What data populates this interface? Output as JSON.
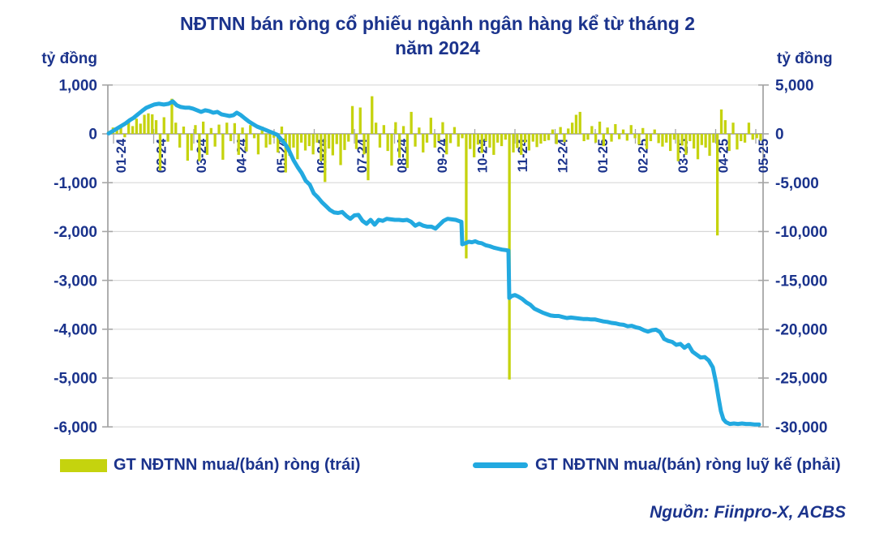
{
  "title": {
    "line1": "NĐTNN bán ròng cổ phiếu ngành ngân hàng kể từ tháng 2",
    "line2": "năm 2024"
  },
  "left_axis_unit": "tỷ đồng",
  "right_axis_unit": "tỷ đồng",
  "legend": [
    {
      "label": "GT NĐTNN mua/(bán) ròng (trái)",
      "type": "bar",
      "color": "#C5D30E"
    },
    {
      "label": "GT NĐTNN mua/(bán) ròng luỹ kế (phải)",
      "type": "line",
      "color": "#22A9E0"
    }
  ],
  "source": "Nguồn: Fiinpro-X, ACBS",
  "colors": {
    "bar": "#C5D30E",
    "line": "#22A9E0",
    "text": "#1B338C",
    "axis": "#A6A6A6",
    "grid": "#D9D9D9"
  },
  "chart_data": {
    "type": "bar",
    "combo": "bar+line dual axis",
    "title": "NĐTNN bán ròng cổ phiếu ngành ngân hàng kể từ tháng 2 năm 2024",
    "x_labels": [
      "01-24",
      "02-24",
      "03-24",
      "04-24",
      "05-24",
      "06-24",
      "07-24",
      "08-24",
      "09-24",
      "10-24",
      "11-24",
      "12-24",
      "01-25",
      "02-25",
      "03-25",
      "04-25",
      "05-25"
    ],
    "left_axis": {
      "unit": "tỷ đồng",
      "min": -6000,
      "max": 1000,
      "tick_step": 1000,
      "tick_values": [
        1000,
        0,
        -1000,
        -2000,
        -3000,
        -4000,
        -5000,
        -6000
      ],
      "tick_labels": [
        "1,000",
        "0",
        "-1,000",
        "-2,000",
        "-3,000",
        "-4,000",
        "-5,000",
        "-6,000"
      ]
    },
    "right_axis": {
      "unit": "tỷ đồng",
      "min": -30000,
      "max": 5000,
      "tick_step": 5000,
      "tick_values": [
        5000,
        0,
        -5000,
        -10000,
        -15000,
        -20000,
        -25000,
        -30000
      ],
      "tick_labels": [
        "5,000",
        "0",
        "-5,000",
        "-10,000",
        "-15,000",
        "-20,000",
        "-25,000",
        "-30,000"
      ]
    },
    "grid": "horizontal only",
    "legend_position": "bottom",
    "series": [
      {
        "name": "GT NĐTNN mua/(bán) ròng (trái)",
        "type": "bar",
        "axis": "left",
        "values": [
          60,
          130,
          90,
          180,
          -70,
          240,
          160,
          310,
          210,
          390,
          420,
          400,
          280,
          -750,
          340,
          -160,
          720,
          230,
          -280,
          150,
          -550,
          -340,
          180,
          -560,
          250,
          -430,
          120,
          -260,
          190,
          -530,
          230,
          -150,
          220,
          -430,
          130,
          -360,
          180,
          -90,
          -420,
          150,
          -280,
          -220,
          -80,
          -380,
          150,
          -790,
          -450,
          -280,
          -520,
          -180,
          -340,
          -250,
          -420,
          -180,
          -560,
          -985,
          -300,
          -440,
          -210,
          -640,
          -330,
          -160,
          570,
          -310,
          540,
          -420,
          -950,
          770,
          230,
          -280,
          180,
          -350,
          -650,
          240,
          -490,
          160,
          -700,
          450,
          -260,
          130,
          -380,
          -180,
          330,
          -280,
          -150,
          240,
          -420,
          -190,
          140,
          -260,
          -90,
          -2550,
          -310,
          -480,
          -220,
          -390,
          -150,
          -280,
          -430,
          -180,
          -250,
          -120,
          -5030,
          -380,
          -290,
          -430,
          -180,
          -340,
          -160,
          -270,
          -200,
          -150,
          -130,
          90,
          -210,
          140,
          -170,
          110,
          230,
          390,
          450,
          -150,
          -120,
          160,
          -180,
          250,
          -250,
          130,
          -160,
          200,
          -110,
          90,
          -140,
          180,
          -90,
          -220,
          120,
          -310,
          -150,
          90,
          -190,
          -260,
          -180,
          -350,
          -120,
          -560,
          -240,
          -430,
          -150,
          -300,
          -520,
          -230,
          -280,
          -450,
          -180,
          -2080,
          500,
          280,
          -350,
          230,
          -320,
          -150,
          -180,
          230,
          -120,
          -90,
          -140
        ]
      },
      {
        "name": "GT NĐTNN mua/(bán) ròng luỹ kế (phải)",
        "type": "line",
        "axis": "right",
        "points": [
          [
            134,
            50
          ],
          [
            140,
            330
          ],
          [
            145,
            580
          ],
          [
            150,
            830
          ],
          [
            155,
            1080
          ],
          [
            160,
            1400
          ],
          [
            165,
            1650
          ],
          [
            170,
            2000
          ],
          [
            175,
            2330
          ],
          [
            180,
            2650
          ],
          [
            185,
            2830
          ],
          [
            190,
            3000
          ],
          [
            196,
            3080
          ],
          [
            202,
            3000
          ],
          [
            208,
            3080
          ],
          [
            213,
            3330
          ],
          [
            218,
            2920
          ],
          [
            223,
            2750
          ],
          [
            228,
            2680
          ],
          [
            233,
            2680
          ],
          [
            238,
            2580
          ],
          [
            243,
            2420
          ],
          [
            248,
            2250
          ],
          [
            253,
            2420
          ],
          [
            258,
            2330
          ],
          [
            263,
            2170
          ],
          [
            268,
            2250
          ],
          [
            273,
            2000
          ],
          [
            278,
            1920
          ],
          [
            283,
            1830
          ],
          [
            288,
            1920
          ],
          [
            292,
            2170
          ],
          [
            297,
            1920
          ],
          [
            302,
            1580
          ],
          [
            307,
            1250
          ],
          [
            312,
            1000
          ],
          [
            317,
            750
          ],
          [
            322,
            580
          ],
          [
            327,
            420
          ],
          [
            332,
            250
          ],
          [
            337,
            80
          ],
          [
            342,
            -100
          ],
          [
            347,
            -600
          ],
          [
            352,
            -1100
          ],
          [
            357,
            -1800
          ],
          [
            362,
            -2700
          ],
          [
            367,
            -3400
          ],
          [
            372,
            -4000
          ],
          [
            377,
            -4800
          ],
          [
            382,
            -5200
          ],
          [
            387,
            -6100
          ],
          [
            392,
            -6500
          ],
          [
            397,
            -7000
          ],
          [
            402,
            -7400
          ],
          [
            407,
            -7800
          ],
          [
            412,
            -8050
          ],
          [
            417,
            -8100
          ],
          [
            422,
            -8000
          ],
          [
            427,
            -8400
          ],
          [
            432,
            -8700
          ],
          [
            437,
            -8350
          ],
          [
            442,
            -8300
          ],
          [
            447,
            -8900
          ],
          [
            452,
            -9200
          ],
          [
            457,
            -8800
          ],
          [
            462,
            -9300
          ],
          [
            467,
            -8800
          ],
          [
            472,
            -8900
          ],
          [
            477,
            -8700
          ],
          [
            482,
            -8750
          ],
          [
            487,
            -8800
          ],
          [
            492,
            -8800
          ],
          [
            497,
            -8850
          ],
          [
            502,
            -8800
          ],
          [
            507,
            -9000
          ],
          [
            512,
            -9400
          ],
          [
            517,
            -9200
          ],
          [
            522,
            -9400
          ],
          [
            527,
            -9500
          ],
          [
            532,
            -9500
          ],
          [
            537,
            -9700
          ],
          [
            542,
            -9300
          ],
          [
            547,
            -8900
          ],
          [
            552,
            -8700
          ],
          [
            557,
            -8750
          ],
          [
            562,
            -8800
          ],
          [
            567,
            -8950
          ],
          [
            569,
            -9000
          ],
          [
            570,
            -11300
          ],
          [
            574,
            -11200
          ],
          [
            578,
            -11050
          ],
          [
            582,
            -11100
          ],
          [
            586,
            -11000
          ],
          [
            590,
            -11150
          ],
          [
            594,
            -11200
          ],
          [
            599,
            -11400
          ],
          [
            604,
            -11500
          ],
          [
            609,
            -11650
          ],
          [
            614,
            -11750
          ],
          [
            619,
            -11850
          ],
          [
            624,
            -11900
          ],
          [
            627,
            -11950
          ],
          [
            628,
            -16800
          ],
          [
            631,
            -16600
          ],
          [
            635,
            -16500
          ],
          [
            639,
            -16650
          ],
          [
            644,
            -16900
          ],
          [
            649,
            -17250
          ],
          [
            654,
            -17500
          ],
          [
            659,
            -17900
          ],
          [
            664,
            -18100
          ],
          [
            669,
            -18300
          ],
          [
            674,
            -18450
          ],
          [
            679,
            -18600
          ],
          [
            684,
            -18650
          ],
          [
            689,
            -18650
          ],
          [
            694,
            -18750
          ],
          [
            699,
            -18850
          ],
          [
            704,
            -18800
          ],
          [
            709,
            -18850
          ],
          [
            714,
            -18900
          ],
          [
            719,
            -18950
          ],
          [
            724,
            -18950
          ],
          [
            729,
            -19000
          ],
          [
            734,
            -19000
          ],
          [
            739,
            -19100
          ],
          [
            744,
            -19200
          ],
          [
            749,
            -19250
          ],
          [
            754,
            -19350
          ],
          [
            759,
            -19400
          ],
          [
            764,
            -19500
          ],
          [
            769,
            -19550
          ],
          [
            774,
            -19700
          ],
          [
            779,
            -19650
          ],
          [
            784,
            -19800
          ],
          [
            789,
            -19900
          ],
          [
            794,
            -20100
          ],
          [
            799,
            -20250
          ],
          [
            804,
            -20100
          ],
          [
            809,
            -20050
          ],
          [
            814,
            -20300
          ],
          [
            819,
            -21000
          ],
          [
            824,
            -21200
          ],
          [
            829,
            -21300
          ],
          [
            834,
            -21600
          ],
          [
            839,
            -21500
          ],
          [
            844,
            -21900
          ],
          [
            849,
            -21600
          ],
          [
            854,
            -22300
          ],
          [
            859,
            -22600
          ],
          [
            864,
            -22900
          ],
          [
            869,
            -22850
          ],
          [
            874,
            -23200
          ],
          [
            879,
            -23900
          ],
          [
            883,
            -25500
          ],
          [
            886,
            -27000
          ],
          [
            889,
            -28400
          ],
          [
            892,
            -29200
          ],
          [
            895,
            -29500
          ],
          [
            900,
            -29700
          ],
          [
            905,
            -29650
          ],
          [
            910,
            -29700
          ],
          [
            915,
            -29650
          ],
          [
            920,
            -29700
          ],
          [
            925,
            -29700
          ],
          [
            930,
            -29750
          ],
          [
            936,
            -29750
          ]
        ]
      }
    ]
  }
}
